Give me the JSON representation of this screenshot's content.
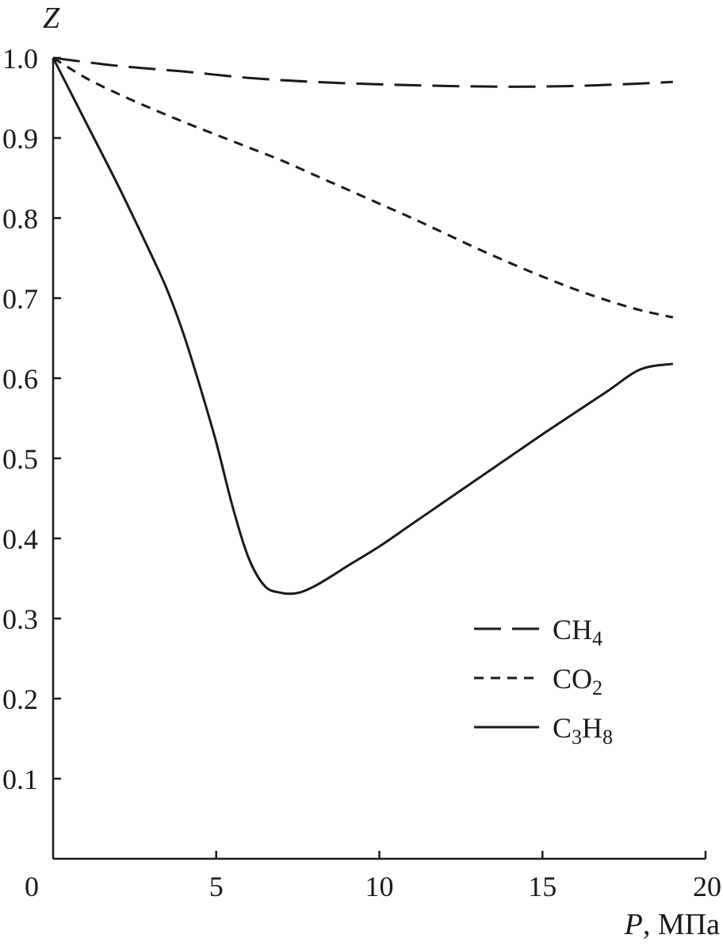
{
  "chart_data": {
    "type": "line",
    "ylabel": "Z",
    "xlabel_var": "P",
    "xlabel_unit": ", МПа",
    "xlim": [
      0,
      20
    ],
    "ylim": [
      0,
      1.0
    ],
    "xticks": [
      "0",
      "5",
      "10",
      "15",
      "20"
    ],
    "yticks": [
      "0.1",
      "0.2",
      "0.3",
      "0.4",
      "0.5",
      "0.6",
      "0.7",
      "0.8",
      "0.9",
      "1.0"
    ],
    "grid": false,
    "legend_position": "lower-right",
    "series": [
      {
        "name": "CH4",
        "label_main": "CH",
        "label_sub": "4",
        "label_sub_pos": "end",
        "style": "long-dash",
        "x": [
          0,
          2,
          4,
          6,
          8,
          10,
          12,
          14,
          16,
          18,
          19
        ],
        "y": [
          1.0,
          0.99,
          0.983,
          0.975,
          0.97,
          0.967,
          0.965,
          0.964,
          0.965,
          0.968,
          0.97
        ]
      },
      {
        "name": "CO2",
        "label_main": "CO",
        "label_sub": "2",
        "label_sub_pos": "end",
        "style": "short-dash",
        "x": [
          0,
          1,
          2,
          3,
          4,
          5,
          6,
          7,
          8,
          9,
          10,
          11,
          12,
          13,
          14,
          15,
          16,
          17,
          18,
          19
        ],
        "y": [
          1.0,
          0.975,
          0.955,
          0.937,
          0.92,
          0.904,
          0.888,
          0.872,
          0.854,
          0.836,
          0.818,
          0.8,
          0.781,
          0.762,
          0.744,
          0.727,
          0.711,
          0.697,
          0.685,
          0.676
        ]
      },
      {
        "name": "C3H8",
        "label_main": "C",
        "label_sub": "3",
        "label_main2": "H",
        "label_sub2": "8",
        "style": "solid",
        "x": [
          0,
          1,
          2,
          3,
          3.5,
          4,
          4.5,
          5,
          5.5,
          6,
          6.5,
          7,
          7.3,
          7.6,
          8,
          8.5,
          9,
          10,
          11,
          12,
          13,
          14,
          15,
          16,
          17,
          18,
          19
        ],
        "y": [
          1.0,
          0.92,
          0.84,
          0.755,
          0.71,
          0.655,
          0.59,
          0.52,
          0.44,
          0.375,
          0.34,
          0.332,
          0.331,
          0.333,
          0.34,
          0.352,
          0.365,
          0.39,
          0.418,
          0.446,
          0.474,
          0.502,
          0.53,
          0.557,
          0.584,
          0.611,
          0.618
        ]
      }
    ]
  }
}
